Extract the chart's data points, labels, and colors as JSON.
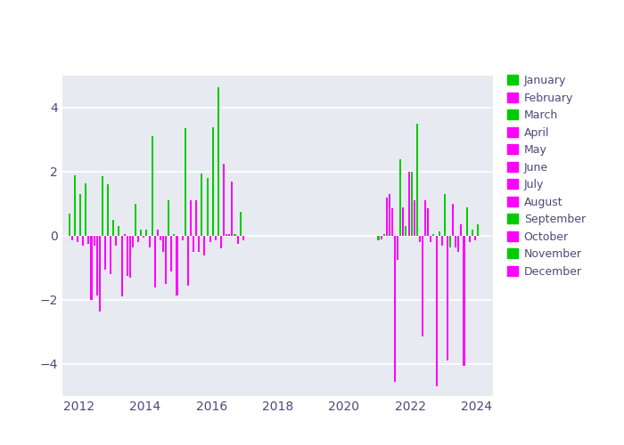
{
  "background_color": "#e8eaf2",
  "figure_bg": "#ffffff",
  "xlim": [
    2011.5,
    2024.5
  ],
  "ylim": [
    -5.0,
    5.0
  ],
  "yticks": [
    -4,
    -2,
    0,
    2,
    4
  ],
  "xticks": [
    2012,
    2014,
    2016,
    2018,
    2020,
    2022,
    2024
  ],
  "green_color": "#00cc00",
  "magenta_color": "#ff00ff",
  "legend_labels": [
    "January",
    "February",
    "March",
    "April",
    "May",
    "June",
    "July",
    "August",
    "September",
    "October",
    "November",
    "December"
  ],
  "legend_colors": [
    "green",
    "magenta",
    "green",
    "magenta",
    "magenta",
    "magenta",
    "magenta",
    "magenta",
    "green",
    "magenta",
    "green",
    "magenta"
  ],
  "bar_width": 0.055,
  "data": [
    {
      "year": 2011,
      "month": 9,
      "value": 0.7,
      "color": "green"
    },
    {
      "year": 2011,
      "month": 10,
      "value": -0.15,
      "color": "magenta"
    },
    {
      "year": 2011,
      "month": 11,
      "value": 1.9,
      "color": "green"
    },
    {
      "year": 2011,
      "month": 12,
      "value": -0.2,
      "color": "magenta"
    },
    {
      "year": 2012,
      "month": 1,
      "value": 1.3,
      "color": "green"
    },
    {
      "year": 2012,
      "month": 2,
      "value": -0.3,
      "color": "magenta"
    },
    {
      "year": 2012,
      "month": 3,
      "value": 1.65,
      "color": "green"
    },
    {
      "year": 2012,
      "month": 4,
      "value": -0.25,
      "color": "magenta"
    },
    {
      "year": 2012,
      "month": 5,
      "value": -2.0,
      "color": "magenta"
    },
    {
      "year": 2012,
      "month": 6,
      "value": -0.3,
      "color": "magenta"
    },
    {
      "year": 2012,
      "month": 7,
      "value": -1.85,
      "color": "magenta"
    },
    {
      "year": 2012,
      "month": 8,
      "value": -2.35,
      "color": "magenta"
    },
    {
      "year": 2012,
      "month": 9,
      "value": 1.85,
      "color": "green"
    },
    {
      "year": 2012,
      "month": 10,
      "value": -1.05,
      "color": "magenta"
    },
    {
      "year": 2012,
      "month": 11,
      "value": 1.6,
      "color": "green"
    },
    {
      "year": 2012,
      "month": 12,
      "value": -1.2,
      "color": "magenta"
    },
    {
      "year": 2013,
      "month": 1,
      "value": 0.5,
      "color": "green"
    },
    {
      "year": 2013,
      "month": 2,
      "value": -0.3,
      "color": "magenta"
    },
    {
      "year": 2013,
      "month": 3,
      "value": 0.3,
      "color": "green"
    },
    {
      "year": 2013,
      "month": 4,
      "value": -1.9,
      "color": "magenta"
    },
    {
      "year": 2013,
      "month": 5,
      "value": 0.05,
      "color": "magenta"
    },
    {
      "year": 2013,
      "month": 6,
      "value": -1.25,
      "color": "magenta"
    },
    {
      "year": 2013,
      "month": 7,
      "value": -1.3,
      "color": "magenta"
    },
    {
      "year": 2013,
      "month": 8,
      "value": -0.35,
      "color": "magenta"
    },
    {
      "year": 2013,
      "month": 9,
      "value": 1.0,
      "color": "green"
    },
    {
      "year": 2013,
      "month": 10,
      "value": -0.2,
      "color": "magenta"
    },
    {
      "year": 2013,
      "month": 11,
      "value": 0.2,
      "color": "green"
    },
    {
      "year": 2013,
      "month": 12,
      "value": -0.05,
      "color": "magenta"
    },
    {
      "year": 2014,
      "month": 1,
      "value": 0.2,
      "color": "green"
    },
    {
      "year": 2014,
      "month": 2,
      "value": -0.35,
      "color": "magenta"
    },
    {
      "year": 2014,
      "month": 3,
      "value": 3.1,
      "color": "green"
    },
    {
      "year": 2014,
      "month": 4,
      "value": -1.6,
      "color": "magenta"
    },
    {
      "year": 2014,
      "month": 5,
      "value": 0.2,
      "color": "magenta"
    },
    {
      "year": 2014,
      "month": 6,
      "value": -0.15,
      "color": "magenta"
    },
    {
      "year": 2014,
      "month": 7,
      "value": -0.5,
      "color": "magenta"
    },
    {
      "year": 2014,
      "month": 8,
      "value": -1.5,
      "color": "magenta"
    },
    {
      "year": 2014,
      "month": 9,
      "value": 1.1,
      "color": "green"
    },
    {
      "year": 2014,
      "month": 10,
      "value": -1.1,
      "color": "magenta"
    },
    {
      "year": 2014,
      "month": 11,
      "value": 0.05,
      "color": "green"
    },
    {
      "year": 2014,
      "month": 12,
      "value": -1.85,
      "color": "magenta"
    },
    {
      "year": 2015,
      "month": 1,
      "value": 0.0,
      "color": "green"
    },
    {
      "year": 2015,
      "month": 2,
      "value": -0.15,
      "color": "magenta"
    },
    {
      "year": 2015,
      "month": 3,
      "value": 3.35,
      "color": "green"
    },
    {
      "year": 2015,
      "month": 4,
      "value": -1.55,
      "color": "magenta"
    },
    {
      "year": 2015,
      "month": 5,
      "value": 1.1,
      "color": "magenta"
    },
    {
      "year": 2015,
      "month": 6,
      "value": -0.5,
      "color": "magenta"
    },
    {
      "year": 2015,
      "month": 7,
      "value": 1.1,
      "color": "magenta"
    },
    {
      "year": 2015,
      "month": 8,
      "value": -0.5,
      "color": "magenta"
    },
    {
      "year": 2015,
      "month": 9,
      "value": 1.95,
      "color": "green"
    },
    {
      "year": 2015,
      "month": 10,
      "value": -0.6,
      "color": "magenta"
    },
    {
      "year": 2015,
      "month": 11,
      "value": 1.8,
      "color": "green"
    },
    {
      "year": 2015,
      "month": 12,
      "value": -0.2,
      "color": "magenta"
    },
    {
      "year": 2016,
      "month": 1,
      "value": 3.4,
      "color": "green"
    },
    {
      "year": 2016,
      "month": 2,
      "value": -0.15,
      "color": "magenta"
    },
    {
      "year": 2016,
      "month": 3,
      "value": 4.65,
      "color": "green"
    },
    {
      "year": 2016,
      "month": 4,
      "value": -0.4,
      "color": "magenta"
    },
    {
      "year": 2016,
      "month": 5,
      "value": 2.25,
      "color": "magenta"
    },
    {
      "year": 2016,
      "month": 6,
      "value": 0.05,
      "color": "magenta"
    },
    {
      "year": 2016,
      "month": 7,
      "value": 0.05,
      "color": "magenta"
    },
    {
      "year": 2016,
      "month": 8,
      "value": 1.7,
      "color": "magenta"
    },
    {
      "year": 2016,
      "month": 9,
      "value": 0.05,
      "color": "green"
    },
    {
      "year": 2016,
      "month": 10,
      "value": -0.25,
      "color": "magenta"
    },
    {
      "year": 2016,
      "month": 11,
      "value": 0.75,
      "color": "green"
    },
    {
      "year": 2016,
      "month": 12,
      "value": -0.15,
      "color": "magenta"
    },
    {
      "year": 2021,
      "month": 1,
      "value": -0.15,
      "color": "green"
    },
    {
      "year": 2021,
      "month": 2,
      "value": -0.1,
      "color": "magenta"
    },
    {
      "year": 2021,
      "month": 3,
      "value": 0.05,
      "color": "green"
    },
    {
      "year": 2021,
      "month": 4,
      "value": 1.2,
      "color": "magenta"
    },
    {
      "year": 2021,
      "month": 5,
      "value": 1.3,
      "color": "magenta"
    },
    {
      "year": 2021,
      "month": 6,
      "value": 0.85,
      "color": "magenta"
    },
    {
      "year": 2021,
      "month": 7,
      "value": -4.55,
      "color": "magenta"
    },
    {
      "year": 2021,
      "month": 8,
      "value": -0.75,
      "color": "magenta"
    },
    {
      "year": 2021,
      "month": 9,
      "value": 2.4,
      "color": "green"
    },
    {
      "year": 2021,
      "month": 10,
      "value": 0.9,
      "color": "magenta"
    },
    {
      "year": 2021,
      "month": 11,
      "value": 0.3,
      "color": "green"
    },
    {
      "year": 2021,
      "month": 12,
      "value": 2.0,
      "color": "magenta"
    },
    {
      "year": 2022,
      "month": 1,
      "value": 2.0,
      "color": "green"
    },
    {
      "year": 2022,
      "month": 2,
      "value": 1.1,
      "color": "magenta"
    },
    {
      "year": 2022,
      "month": 3,
      "value": 3.5,
      "color": "green"
    },
    {
      "year": 2022,
      "month": 4,
      "value": -0.2,
      "color": "magenta"
    },
    {
      "year": 2022,
      "month": 5,
      "value": -3.15,
      "color": "magenta"
    },
    {
      "year": 2022,
      "month": 6,
      "value": 1.1,
      "color": "magenta"
    },
    {
      "year": 2022,
      "month": 7,
      "value": 0.85,
      "color": "magenta"
    },
    {
      "year": 2022,
      "month": 8,
      "value": -0.2,
      "color": "magenta"
    },
    {
      "year": 2022,
      "month": 9,
      "value": 0.05,
      "color": "green"
    },
    {
      "year": 2022,
      "month": 10,
      "value": -4.7,
      "color": "magenta"
    },
    {
      "year": 2022,
      "month": 11,
      "value": 0.15,
      "color": "green"
    },
    {
      "year": 2022,
      "month": 12,
      "value": -0.3,
      "color": "magenta"
    },
    {
      "year": 2023,
      "month": 1,
      "value": 1.3,
      "color": "green"
    },
    {
      "year": 2023,
      "month": 2,
      "value": -3.9,
      "color": "magenta"
    },
    {
      "year": 2023,
      "month": 3,
      "value": -0.35,
      "color": "green"
    },
    {
      "year": 2023,
      "month": 4,
      "value": 1.0,
      "color": "magenta"
    },
    {
      "year": 2023,
      "month": 5,
      "value": -0.35,
      "color": "magenta"
    },
    {
      "year": 2023,
      "month": 6,
      "value": -0.5,
      "color": "magenta"
    },
    {
      "year": 2023,
      "month": 7,
      "value": 0.35,
      "color": "magenta"
    },
    {
      "year": 2023,
      "month": 8,
      "value": -4.05,
      "color": "magenta"
    },
    {
      "year": 2023,
      "month": 9,
      "value": 0.9,
      "color": "green"
    },
    {
      "year": 2023,
      "month": 10,
      "value": -0.2,
      "color": "magenta"
    },
    {
      "year": 2023,
      "month": 11,
      "value": 0.2,
      "color": "green"
    },
    {
      "year": 2023,
      "month": 12,
      "value": -0.15,
      "color": "magenta"
    },
    {
      "year": 2024,
      "month": 1,
      "value": 0.35,
      "color": "green"
    }
  ]
}
